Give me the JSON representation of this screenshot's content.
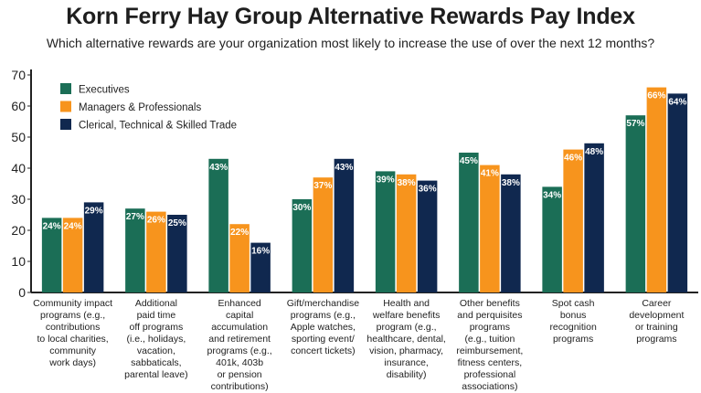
{
  "title": "Korn Ferry Hay Group Alternative Rewards Pay Index",
  "subtitle": "Which alternative rewards are your organization most likely to increase the use of over the next 12 months?",
  "chart_data": {
    "type": "bar",
    "title": "Korn Ferry Hay Group Alternative Rewards Pay Index",
    "subtitle": "Which alternative rewards are your organization most likely to increase the use of over the next 12 months?",
    "xlabel": "",
    "ylabel": "",
    "ylim": [
      0,
      70
    ],
    "yticks": [
      0,
      10,
      20,
      30,
      40,
      50,
      60,
      70
    ],
    "legend_position": "top-left",
    "grid": false,
    "categories": [
      [
        "Community impact",
        "programs (e.g.,",
        "contributions",
        "to local charities,",
        "community",
        "work days)"
      ],
      [
        "Additional",
        "paid time",
        "off programs",
        "(i.e., holidays,",
        "vacation,",
        "sabbaticals,",
        "parental leave)"
      ],
      [
        "Enhanced",
        "capital",
        "accumulation",
        "and retirement",
        "programs (e.g.,",
        "401k, 403b",
        "or pension",
        "contributions)"
      ],
      [
        "Gift/merchandise",
        "programs (e.g.,",
        "Apple watches,",
        "sporting event/",
        "concert tickets)"
      ],
      [
        "Health and",
        "welfare benefits",
        "program (e.g.,",
        "healthcare, dental,",
        "vision, pharmacy,",
        "insurance,",
        "disability)"
      ],
      [
        "Other benefits",
        "and perquisites",
        "programs",
        "(e.g., tuition",
        "reimbursement,",
        "fitness centers,",
        "professional",
        "associations)"
      ],
      [
        "Spot cash",
        "bonus",
        "recognition",
        "programs"
      ],
      [
        "Career",
        "development",
        "or training",
        "programs"
      ]
    ],
    "series": [
      {
        "name": "Executives",
        "color": "#1b6e56",
        "values": [
          24,
          27,
          43,
          30,
          39,
          45,
          34,
          57
        ],
        "labels": [
          "24%",
          "27%",
          "43%",
          "30%",
          "39%",
          "45%",
          "34%",
          "57%"
        ]
      },
      {
        "name": "Managers & Professionals",
        "color": "#f7941d",
        "values": [
          24,
          26,
          22,
          37,
          38,
          41,
          46,
          66
        ],
        "labels": [
          "24%",
          "26%",
          "22%",
          "37%",
          "38%",
          "41%",
          "46%",
          "66%"
        ]
      },
      {
        "name": "Clerical, Technical & Skilled Trade",
        "color": "#10284f",
        "values": [
          29,
          25,
          16,
          43,
          36,
          38,
          48,
          64
        ],
        "labels": [
          "29%",
          "25%",
          "16%",
          "43%",
          "36%",
          "38%",
          "48%",
          "64%"
        ]
      }
    ]
  }
}
